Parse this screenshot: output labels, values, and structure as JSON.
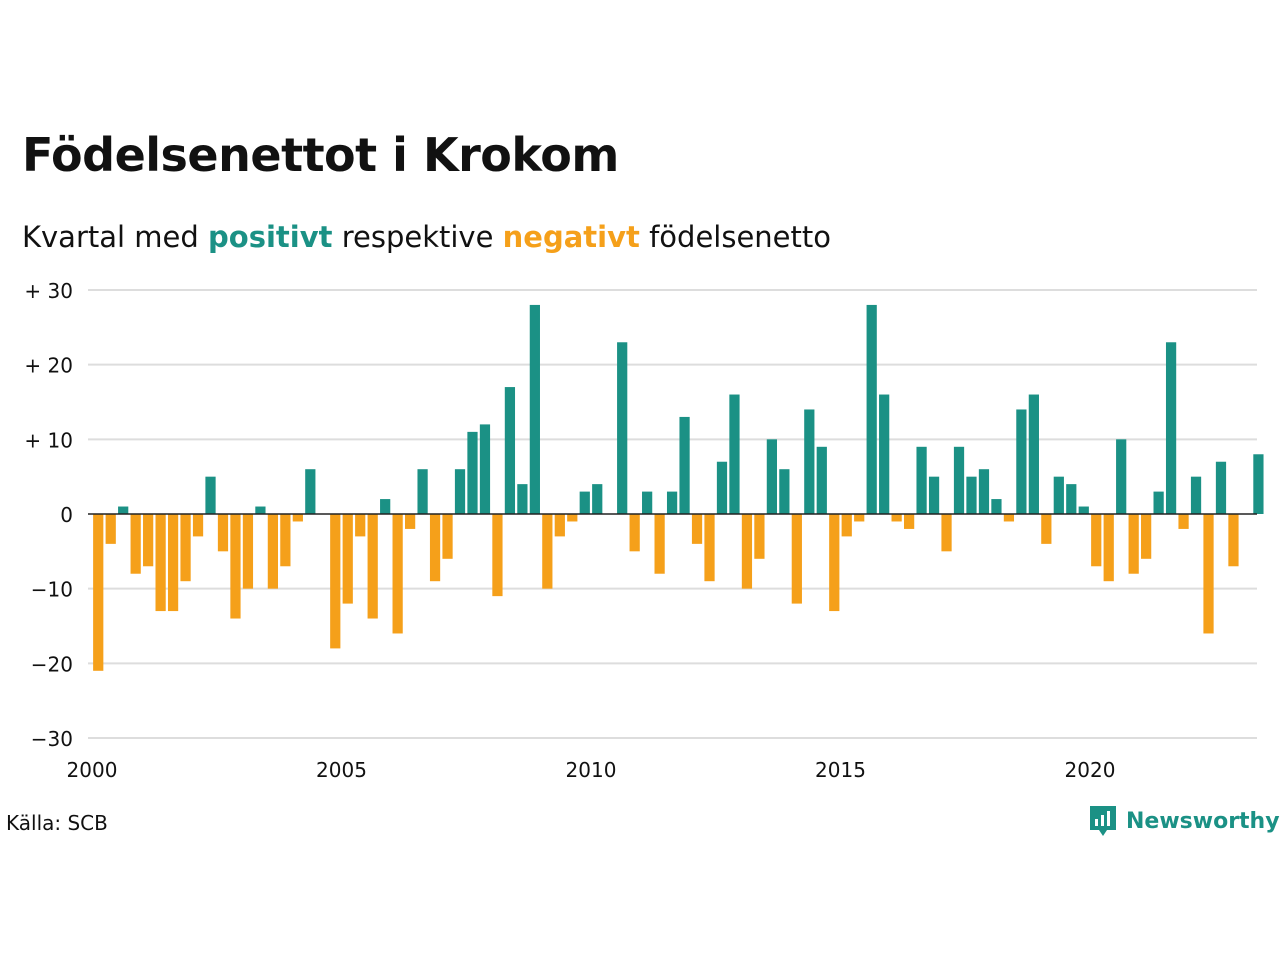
{
  "title": "Födelsenettot i Krokom",
  "subtitle": {
    "prefix": "Kvartal med ",
    "positive_word": "positivt",
    "middle": " respektive ",
    "negative_word": "negativt",
    "suffix": " födelsenetto"
  },
  "source": "Källa: SCB",
  "brand": {
    "name": "Newsworthy",
    "icon": "newsworthy-logo-icon"
  },
  "colors": {
    "positive": "#1b9185",
    "negative": "#f5a01a",
    "grid": "#dddddd",
    "axis": "#222222",
    "text": "#111111"
  },
  "chart_data": {
    "type": "bar",
    "x_start": "2000 Q1",
    "x_tick_labels": [
      "2000",
      "2005",
      "2010",
      "2015",
      "2020"
    ],
    "y_tick_labels": [
      "+ 30",
      "+ 20",
      "+ 10",
      "0",
      "−10",
      "−20",
      "−30"
    ],
    "ylim": [
      -30,
      30
    ],
    "grid": true,
    "values": [
      -21,
      -4,
      1,
      -8,
      -7,
      -13,
      -13,
      -9,
      -3,
      5,
      -5,
      -14,
      -10,
      1,
      -10,
      -7,
      -1,
      6,
      0,
      -18,
      -12,
      -3,
      -14,
      2,
      -16,
      -2,
      6,
      -9,
      -6,
      6,
      11,
      12,
      -11,
      17,
      4,
      28,
      -10,
      -3,
      -1,
      3,
      4,
      0,
      23,
      -5,
      3,
      -8,
      3,
      13,
      -4,
      -9,
      7,
      16,
      -10,
      -6,
      10,
      6,
      -12,
      14,
      9,
      -13,
      -3,
      -1,
      28,
      16,
      -1,
      -2,
      9,
      5,
      -5,
      9,
      5,
      6,
      2,
      -1,
      14,
      16,
      -4,
      5,
      4,
      1,
      -7,
      -9,
      10,
      -8,
      -6,
      3,
      23,
      -2,
      5,
      -16,
      7,
      -7,
      0,
      8
    ]
  }
}
